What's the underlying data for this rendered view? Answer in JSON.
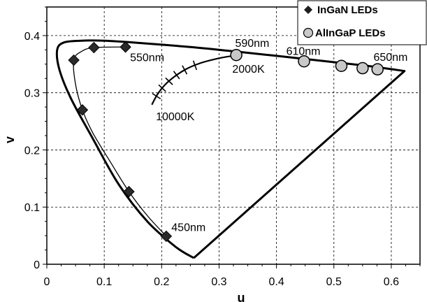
{
  "chart_data": {
    "type": "scatter",
    "xlabel": "u",
    "ylabel": "v",
    "xlim": [
      0,
      0.65
    ],
    "ylim": [
      0,
      0.45
    ],
    "x_ticks": [
      "0",
      "0.1",
      "0.2",
      "0.3",
      "0.4",
      "0.5",
      "0.6"
    ],
    "y_ticks": [
      "0",
      "0.1",
      "0.2",
      "0.3",
      "0.4"
    ],
    "grid": "dashed",
    "legend_position": "top-right",
    "series": [
      {
        "name": "InGaN LEDs",
        "marker": "diamond",
        "color": "#2a2a2a",
        "points": [
          {
            "x": 0.208,
            "y": 0.049
          },
          {
            "x": 0.143,
            "y": 0.127
          },
          {
            "x": 0.062,
            "y": 0.27
          },
          {
            "x": 0.047,
            "y": 0.357
          },
          {
            "x": 0.082,
            "y": 0.379
          },
          {
            "x": 0.137,
            "y": 0.38
          }
        ]
      },
      {
        "name": "AlInGaP LEDs",
        "marker": "circle",
        "color": "#c8c8c8",
        "points": [
          {
            "x": 0.33,
            "y": 0.366
          },
          {
            "x": 0.448,
            "y": 0.355
          },
          {
            "x": 0.513,
            "y": 0.347
          },
          {
            "x": 0.55,
            "y": 0.343
          },
          {
            "x": 0.576,
            "y": 0.341
          }
        ]
      }
    ],
    "spectrum_locus": [
      [
        0.256,
        0.011
      ],
      [
        0.225,
        0.03
      ],
      [
        0.175,
        0.075
      ],
      [
        0.125,
        0.14
      ],
      [
        0.08,
        0.22
      ],
      [
        0.042,
        0.29
      ],
      [
        0.022,
        0.34
      ],
      [
        0.018,
        0.375
      ],
      [
        0.03,
        0.388
      ],
      [
        0.06,
        0.391
      ],
      [
        0.1,
        0.391
      ],
      [
        0.15,
        0.388
      ],
      [
        0.25,
        0.38
      ],
      [
        0.33,
        0.372
      ],
      [
        0.45,
        0.359
      ],
      [
        0.55,
        0.348
      ],
      [
        0.623,
        0.338
      ],
      [
        0.256,
        0.011
      ]
    ],
    "ingan_curve": [
      [
        0.208,
        0.049
      ],
      [
        0.175,
        0.085
      ],
      [
        0.143,
        0.127
      ],
      [
        0.11,
        0.18
      ],
      [
        0.08,
        0.23
      ],
      [
        0.062,
        0.27
      ],
      [
        0.05,
        0.315
      ],
      [
        0.047,
        0.357
      ],
      [
        0.06,
        0.372
      ],
      [
        0.082,
        0.379
      ],
      [
        0.137,
        0.38
      ]
    ],
    "planckian_locus": [
      [
        0.183,
        0.279
      ],
      [
        0.192,
        0.296
      ],
      [
        0.205,
        0.313
      ],
      [
        0.222,
        0.328
      ],
      [
        0.242,
        0.341
      ],
      [
        0.265,
        0.351
      ],
      [
        0.29,
        0.358
      ],
      [
        0.314,
        0.363
      ],
      [
        0.332,
        0.365
      ]
    ],
    "planckian_ticks": [
      [
        0.191,
        0.294
      ],
      [
        0.201,
        0.308
      ],
      [
        0.213,
        0.32
      ],
      [
        0.226,
        0.331
      ],
      [
        0.24,
        0.34
      ],
      [
        0.258,
        0.348
      ]
    ],
    "annotations": [
      {
        "id": "nm550",
        "text": "550nm",
        "x": 0.145,
        "y": 0.355
      },
      {
        "id": "nm590",
        "text": "590nm",
        "x": 0.328,
        "y": 0.38
      },
      {
        "id": "nm610",
        "text": "610nm",
        "x": 0.417,
        "y": 0.366
      },
      {
        "id": "nm650",
        "text": "650nm",
        "x": 0.569,
        "y": 0.356
      },
      {
        "id": "k2000",
        "text": "2000K",
        "x": 0.323,
        "y": 0.335
      },
      {
        "id": "k10000",
        "text": "10000K",
        "x": 0.19,
        "y": 0.252
      },
      {
        "id": "nm450",
        "text": "450nm",
        "x": 0.217,
        "y": 0.058
      }
    ]
  }
}
